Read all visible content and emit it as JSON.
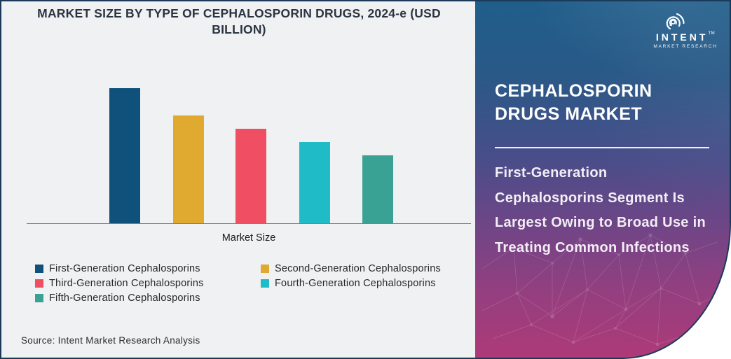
{
  "chart_card": {
    "title_lines": [
      "MARKET SIZE BY TYPE OF CEPHALOSPORIN DRUGS, 2024-e (USD",
      "BILLION)"
    ],
    "x_axis_label": "Market Size",
    "source": "Source: Intent Market Research Analysis",
    "background_color": "#f0f1f3",
    "border_color": "#1b3a5a"
  },
  "chart_data": {
    "type": "bar",
    "title": "MARKET SIZE BY TYPE OF CEPHALOSPORIN DRUGS, 2024-e (USD BILLION)",
    "categories": [
      "First-Generation Cephalosporins",
      "Second-Generation Cephalosporins",
      "Third-Generation Cephalosporins",
      "Fourth-Generation Cephalosporins",
      "Fifth-Generation Cephalosporins"
    ],
    "values": [
      100,
      80,
      70,
      60,
      50
    ],
    "value_axis_visible": false,
    "colors": [
      "#10517c",
      "#e0a92f",
      "#f04e63",
      "#1fbcc7",
      "#3aa294"
    ],
    "xlabel": "Market Size",
    "ylabel": "",
    "grid": false,
    "legend_position": "bottom"
  },
  "panel": {
    "title_lines": [
      "CEPHALOSPORIN",
      "DRUGS MARKET"
    ],
    "description_lines": [
      "First-Generation",
      "Cephalosporins Segment Is",
      "Largest Owing to Broad Use in",
      "Treating Common Infections"
    ],
    "gradient_top_color": "#205e8a",
    "gradient_bottom_color": "#ae3a78"
  },
  "logo": {
    "name": "INTENT",
    "subtitle": "MARKET RESEARCH",
    "trademark": "TM"
  }
}
